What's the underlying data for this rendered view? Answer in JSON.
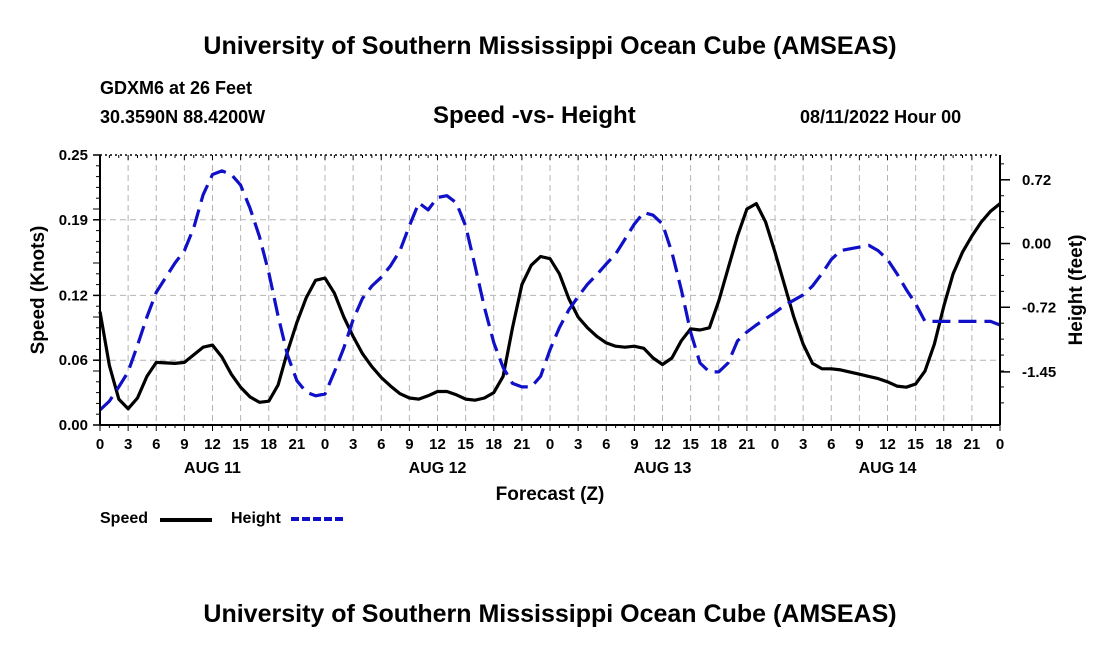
{
  "header": {
    "title": "University of Southern Mississippi Ocean Cube (AMSEAS)",
    "station": "GDXM6 at 26 Feet",
    "coords": "30.3590N  88.4200W",
    "chart_title": "Speed -vs- Height",
    "date": "08/11/2022 Hour 00"
  },
  "footer": {
    "title": "University of Southern Mississippi Ocean Cube (AMSEAS)"
  },
  "legend": {
    "speed_label": "Speed",
    "height_label": "Height"
  },
  "colors": {
    "speed": "#000000",
    "height": "#1010c8",
    "grid": "#b4b4b4"
  },
  "chart_data": {
    "type": "line",
    "title": "Speed -vs- Height",
    "xlabel": "Forecast (Z)",
    "ylabel": "Speed (Knots)",
    "y2label": "Height (feet)",
    "xlim": [
      0,
      96
    ],
    "ylim": [
      0,
      0.25
    ],
    "y2lim": [
      -2.05,
      1.0
    ],
    "y_ticks": [
      0.0,
      0.06,
      0.12,
      0.19,
      0.25
    ],
    "y_tick_labels": [
      "0.00",
      "0.06",
      "0.12",
      "0.19",
      "0.25"
    ],
    "y2_ticks": [
      0.72,
      0.0,
      -0.72,
      -1.45
    ],
    "y2_tick_labels": [
      "0.72",
      "0.00",
      "-0.72",
      "-1.45"
    ],
    "x_tick_labels": [
      "0",
      "3",
      "6",
      "9",
      "12",
      "15",
      "18",
      "21",
      "0",
      "3",
      "6",
      "9",
      "12",
      "15",
      "18",
      "21",
      "0",
      "3",
      "6",
      "9",
      "12",
      "15",
      "18",
      "21",
      "0",
      "3",
      "6",
      "9",
      "12",
      "15",
      "18",
      "21",
      "0"
    ],
    "day_labels": [
      {
        "label": "AUG 11",
        "hour": 12
      },
      {
        "label": "AUG 12",
        "hour": 36
      },
      {
        "label": "AUG 13",
        "hour": 60
      },
      {
        "label": "AUG 14",
        "hour": 84
      }
    ],
    "grid": true,
    "series": [
      {
        "name": "Speed",
        "axis": "left",
        "style": "solid",
        "x": [
          0,
          1,
          2,
          3,
          4,
          5,
          6,
          8,
          9,
          10,
          11,
          12,
          13,
          14,
          15,
          16,
          17,
          18,
          19,
          20,
          21,
          22,
          23,
          24,
          25,
          26,
          27,
          28,
          29,
          30,
          31,
          32,
          33,
          34,
          35,
          36,
          37,
          38,
          39,
          40,
          41,
          42,
          43,
          44,
          45,
          46,
          47,
          48,
          49,
          50,
          51,
          52,
          53,
          54,
          55,
          56,
          57,
          58,
          59,
          60,
          61,
          62,
          63,
          64,
          65,
          66,
          67,
          68,
          69,
          70,
          71,
          72,
          73,
          74,
          75,
          76,
          77,
          78,
          79,
          80,
          81,
          82,
          83,
          84,
          85,
          86,
          87,
          88,
          89,
          90,
          91,
          92,
          93,
          94,
          95,
          96
        ],
        "y": [
          0.105,
          0.055,
          0.024,
          0.015,
          0.025,
          0.045,
          0.058,
          0.057,
          0.058,
          0.065,
          0.072,
          0.074,
          0.063,
          0.047,
          0.035,
          0.026,
          0.021,
          0.022,
          0.037,
          0.068,
          0.095,
          0.118,
          0.134,
          0.136,
          0.122,
          0.1,
          0.082,
          0.066,
          0.054,
          0.044,
          0.036,
          0.029,
          0.025,
          0.024,
          0.027,
          0.031,
          0.031,
          0.028,
          0.024,
          0.023,
          0.025,
          0.03,
          0.045,
          0.09,
          0.13,
          0.148,
          0.156,
          0.154,
          0.14,
          0.117,
          0.1,
          0.09,
          0.082,
          0.076,
          0.073,
          0.072,
          0.073,
          0.071,
          0.062,
          0.056,
          0.062,
          0.078,
          0.089,
          0.088,
          0.09,
          0.115,
          0.145,
          0.175,
          0.2,
          0.205,
          0.188,
          0.16,
          0.13,
          0.1,
          0.075,
          0.057,
          0.052,
          0.052,
          0.051,
          0.049,
          0.047,
          0.045,
          0.043,
          0.04,
          0.036,
          0.035,
          0.038,
          0.05,
          0.075,
          0.11,
          0.14,
          0.16,
          0.175,
          0.188,
          0.198,
          0.205
        ]
      },
      {
        "name": "Height",
        "axis": "right",
        "style": "dashed",
        "x": [
          0,
          1,
          2,
          3,
          4,
          5,
          6,
          8,
          9,
          10,
          11,
          12,
          13,
          14,
          15,
          16,
          17,
          18,
          19,
          20,
          21,
          22,
          23,
          24,
          25,
          26,
          27,
          28,
          29,
          30,
          31,
          32,
          33,
          34,
          35,
          36,
          37,
          38,
          39,
          40,
          41,
          42,
          43,
          44,
          45,
          46,
          47,
          48,
          49,
          50,
          51,
          52,
          53,
          54,
          55,
          56,
          57,
          58,
          59,
          60,
          61,
          62,
          63,
          64,
          65,
          66,
          67,
          68,
          69,
          70,
          71,
          72,
          73,
          74,
          75,
          76,
          77,
          78,
          79,
          80,
          81,
          82,
          83,
          84,
          85,
          86,
          87,
          88,
          89,
          90,
          91,
          92,
          93,
          94,
          95,
          96
        ],
        "y": [
          -1.88,
          -1.78,
          -1.62,
          -1.45,
          -1.15,
          -0.83,
          -0.55,
          -0.22,
          -0.08,
          0.18,
          0.55,
          0.78,
          0.82,
          0.78,
          0.66,
          0.4,
          0.08,
          -0.33,
          -0.82,
          -1.26,
          -1.55,
          -1.68,
          -1.72,
          -1.7,
          -1.45,
          -1.18,
          -0.86,
          -0.62,
          -0.48,
          -0.38,
          -0.25,
          -0.08,
          0.2,
          0.46,
          0.38,
          0.52,
          0.54,
          0.46,
          0.2,
          -0.25,
          -0.72,
          -1.12,
          -1.4,
          -1.58,
          -1.62,
          -1.62,
          -1.5,
          -1.2,
          -0.95,
          -0.75,
          -0.6,
          -0.46,
          -0.35,
          -0.23,
          -0.12,
          0.05,
          0.22,
          0.35,
          0.32,
          0.22,
          -0.1,
          -0.52,
          -1.0,
          -1.35,
          -1.45,
          -1.45,
          -1.35,
          -1.1,
          -1.0,
          -0.92,
          -0.85,
          -0.78,
          -0.7,
          -0.64,
          -0.58,
          -0.48,
          -0.34,
          -0.18,
          -0.08,
          -0.06,
          -0.04,
          -0.02,
          -0.08,
          -0.18,
          -0.34,
          -0.52,
          -0.68,
          -0.88,
          -0.88,
          -0.88,
          -0.88,
          -0.88,
          -0.88,
          -0.88,
          -0.88,
          -0.92
        ]
      }
    ]
  }
}
